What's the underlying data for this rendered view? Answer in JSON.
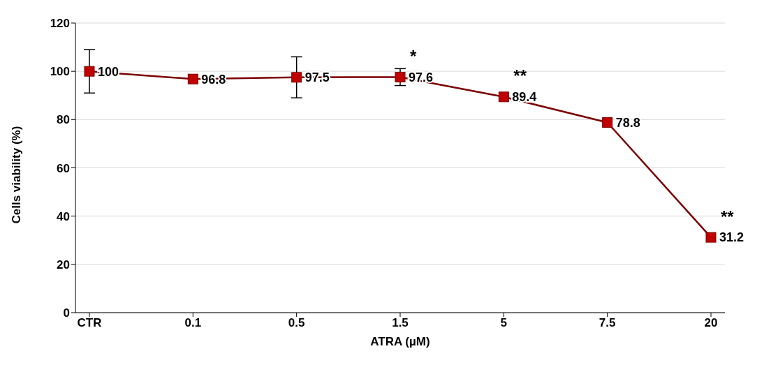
{
  "chart_data": {
    "type": "line",
    "xlabel": "ATRA (µM)",
    "ylabel": "Cells viability (%)",
    "categories": [
      "CTR",
      "0.1",
      "0.5",
      "1.5",
      "5",
      "7.5",
      "20"
    ],
    "series": [
      {
        "color": "#c00000",
        "values": [
          100,
          96.8,
          97.5,
          97.6,
          89.4,
          78.8,
          31.2
        ],
        "errors": [
          9,
          null,
          8.5,
          3.5,
          null,
          null,
          null
        ]
      }
    ],
    "ylim": [
      0,
      120
    ],
    "yticks": [
      0,
      20,
      40,
      60,
      80,
      100,
      120
    ],
    "grid": "y",
    "marker": "square",
    "line_style": "solid",
    "data_labels": true,
    "annotations": [
      {
        "text": "*",
        "x": "1.5",
        "y": 97.6
      },
      {
        "text": "**",
        "x": "5",
        "y": 89.4
      },
      {
        "text": "**",
        "x": "20",
        "y": 31.2
      }
    ]
  }
}
